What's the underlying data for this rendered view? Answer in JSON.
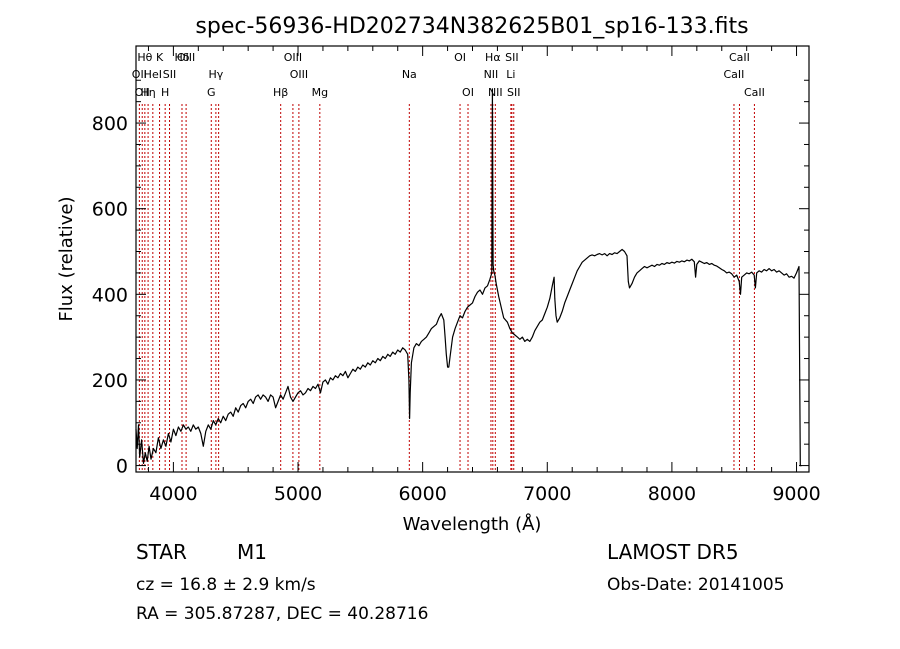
{
  "chart_data": {
    "type": "line",
    "title": "spec-56936-HD202734N382625B01_sp16-133.fits",
    "xlabel": "Wavelength (Å)",
    "ylabel": "Flux (relative)",
    "xlim": [
      3700,
      9100
    ],
    "ylim": [
      -15,
      980
    ],
    "xticks": [
      4000,
      5000,
      6000,
      7000,
      8000,
      9000
    ],
    "yticks": [
      0,
      200,
      400,
      600,
      800
    ],
    "grid": false,
    "series": [
      {
        "points": [
          [
            3700,
            85
          ],
          [
            3710,
            40
          ],
          [
            3720,
            95
          ],
          [
            3730,
            20
          ],
          [
            3745,
            60
          ],
          [
            3760,
            5
          ],
          [
            3775,
            30
          ],
          [
            3790,
            10
          ],
          [
            3805,
            45
          ],
          [
            3820,
            15
          ],
          [
            3840,
            40
          ],
          [
            3860,
            30
          ],
          [
            3880,
            65
          ],
          [
            3900,
            40
          ],
          [
            3920,
            60
          ],
          [
            3940,
            45
          ],
          [
            3960,
            75
          ],
          [
            3980,
            55
          ],
          [
            4000,
            85
          ],
          [
            4020,
            70
          ],
          [
            4040,
            90
          ],
          [
            4060,
            80
          ],
          [
            4080,
            95
          ],
          [
            4100,
            85
          ],
          [
            4120,
            90
          ],
          [
            4140,
            80
          ],
          [
            4160,
            95
          ],
          [
            4180,
            85
          ],
          [
            4200,
            90
          ],
          [
            4220,
            75
          ],
          [
            4240,
            45
          ],
          [
            4260,
            80
          ],
          [
            4280,
            95
          ],
          [
            4300,
            85
          ],
          [
            4320,
            105
          ],
          [
            4340,
            95
          ],
          [
            4360,
            110
          ],
          [
            4380,
            100
          ],
          [
            4400,
            115
          ],
          [
            4420,
            105
          ],
          [
            4440,
            120
          ],
          [
            4460,
            125
          ],
          [
            4480,
            115
          ],
          [
            4500,
            135
          ],
          [
            4520,
            125
          ],
          [
            4540,
            140
          ],
          [
            4560,
            145
          ],
          [
            4580,
            135
          ],
          [
            4600,
            150
          ],
          [
            4620,
            155
          ],
          [
            4640,
            145
          ],
          [
            4660,
            160
          ],
          [
            4680,
            165
          ],
          [
            4700,
            155
          ],
          [
            4720,
            165
          ],
          [
            4740,
            160
          ],
          [
            4760,
            150
          ],
          [
            4780,
            165
          ],
          [
            4800,
            160
          ],
          [
            4820,
            135
          ],
          [
            4840,
            150
          ],
          [
            4860,
            165
          ],
          [
            4880,
            155
          ],
          [
            4900,
            170
          ],
          [
            4920,
            185
          ],
          [
            4940,
            160
          ],
          [
            4960,
            150
          ],
          [
            4980,
            160
          ],
          [
            5000,
            170
          ],
          [
            5020,
            175
          ],
          [
            5040,
            165
          ],
          [
            5060,
            170
          ],
          [
            5080,
            180
          ],
          [
            5100,
            175
          ],
          [
            5120,
            185
          ],
          [
            5140,
            180
          ],
          [
            5160,
            190
          ],
          [
            5180,
            170
          ],
          [
            5200,
            195
          ],
          [
            5220,
            200
          ],
          [
            5240,
            190
          ],
          [
            5260,
            205
          ],
          [
            5280,
            200
          ],
          [
            5300,
            210
          ],
          [
            5320,
            205
          ],
          [
            5340,
            215
          ],
          [
            5360,
            210
          ],
          [
            5380,
            220
          ],
          [
            5400,
            205
          ],
          [
            5420,
            215
          ],
          [
            5440,
            225
          ],
          [
            5460,
            220
          ],
          [
            5480,
            230
          ],
          [
            5500,
            225
          ],
          [
            5520,
            235
          ],
          [
            5540,
            230
          ],
          [
            5560,
            240
          ],
          [
            5580,
            235
          ],
          [
            5600,
            245
          ],
          [
            5620,
            240
          ],
          [
            5640,
            250
          ],
          [
            5660,
            245
          ],
          [
            5680,
            255
          ],
          [
            5700,
            250
          ],
          [
            5720,
            260
          ],
          [
            5740,
            255
          ],
          [
            5760,
            265
          ],
          [
            5780,
            260
          ],
          [
            5800,
            270
          ],
          [
            5820,
            265
          ],
          [
            5840,
            275
          ],
          [
            5860,
            270
          ],
          [
            5880,
            260
          ],
          [
            5890,
            200
          ],
          [
            5895,
            110
          ],
          [
            5900,
            170
          ],
          [
            5910,
            240
          ],
          [
            5930,
            275
          ],
          [
            5950,
            285
          ],
          [
            5970,
            280
          ],
          [
            5990,
            290
          ],
          [
            6010,
            295
          ],
          [
            6030,
            300
          ],
          [
            6050,
            310
          ],
          [
            6070,
            320
          ],
          [
            6090,
            325
          ],
          [
            6110,
            330
          ],
          [
            6130,
            345
          ],
          [
            6150,
            355
          ],
          [
            6170,
            340
          ],
          [
            6180,
            300
          ],
          [
            6190,
            260
          ],
          [
            6200,
            230
          ],
          [
            6210,
            230
          ],
          [
            6220,
            255
          ],
          [
            6240,
            300
          ],
          [
            6260,
            320
          ],
          [
            6280,
            335
          ],
          [
            6300,
            350
          ],
          [
            6320,
            345
          ],
          [
            6340,
            360
          ],
          [
            6360,
            370
          ],
          [
            6380,
            375
          ],
          [
            6400,
            380
          ],
          [
            6420,
            395
          ],
          [
            6440,
            405
          ],
          [
            6460,
            410
          ],
          [
            6480,
            400
          ],
          [
            6500,
            415
          ],
          [
            6520,
            420
          ],
          [
            6540,
            435
          ],
          [
            6555,
            450
          ],
          [
            6560,
            880
          ],
          [
            6565,
            470
          ],
          [
            6570,
            455
          ],
          [
            6580,
            445
          ],
          [
            6590,
            425
          ],
          [
            6610,
            395
          ],
          [
            6630,
            370
          ],
          [
            6650,
            345
          ],
          [
            6680,
            335
          ],
          [
            6700,
            320
          ],
          [
            6720,
            310
          ],
          [
            6740,
            305
          ],
          [
            6760,
            300
          ],
          [
            6780,
            295
          ],
          [
            6800,
            300
          ],
          [
            6820,
            290
          ],
          [
            6840,
            295
          ],
          [
            6860,
            290
          ],
          [
            6880,
            300
          ],
          [
            6900,
            315
          ],
          [
            6920,
            325
          ],
          [
            6940,
            335
          ],
          [
            6960,
            340
          ],
          [
            6980,
            355
          ],
          [
            7000,
            370
          ],
          [
            7020,
            390
          ],
          [
            7040,
            420
          ],
          [
            7055,
            440
          ],
          [
            7060,
            390
          ],
          [
            7070,
            350
          ],
          [
            7080,
            335
          ],
          [
            7100,
            345
          ],
          [
            7120,
            360
          ],
          [
            7140,
            380
          ],
          [
            7160,
            395
          ],
          [
            7180,
            410
          ],
          [
            7200,
            425
          ],
          [
            7220,
            440
          ],
          [
            7240,
            455
          ],
          [
            7260,
            465
          ],
          [
            7280,
            475
          ],
          [
            7300,
            480
          ],
          [
            7320,
            485
          ],
          [
            7340,
            490
          ],
          [
            7360,
            492
          ],
          [
            7380,
            490
          ],
          [
            7400,
            493
          ],
          [
            7420,
            495
          ],
          [
            7440,
            492
          ],
          [
            7460,
            495
          ],
          [
            7480,
            490
          ],
          [
            7500,
            495
          ],
          [
            7520,
            493
          ],
          [
            7540,
            497
          ],
          [
            7560,
            495
          ],
          [
            7580,
            500
          ],
          [
            7600,
            505
          ],
          [
            7620,
            500
          ],
          [
            7640,
            490
          ],
          [
            7650,
            430
          ],
          [
            7660,
            415
          ],
          [
            7680,
            425
          ],
          [
            7700,
            440
          ],
          [
            7720,
            450
          ],
          [
            7740,
            455
          ],
          [
            7760,
            460
          ],
          [
            7780,
            465
          ],
          [
            7800,
            462
          ],
          [
            7820,
            465
          ],
          [
            7840,
            468
          ],
          [
            7860,
            465
          ],
          [
            7880,
            470
          ],
          [
            7900,
            468
          ],
          [
            7920,
            472
          ],
          [
            7940,
            470
          ],
          [
            7960,
            474
          ],
          [
            7980,
            472
          ],
          [
            8000,
            475
          ],
          [
            8020,
            473
          ],
          [
            8040,
            477
          ],
          [
            8060,
            475
          ],
          [
            8080,
            478
          ],
          [
            8100,
            476
          ],
          [
            8120,
            480
          ],
          [
            8140,
            478
          ],
          [
            8160,
            482
          ],
          [
            8180,
            476
          ],
          [
            8190,
            440
          ],
          [
            8200,
            470
          ],
          [
            8220,
            478
          ],
          [
            8240,
            475
          ],
          [
            8260,
            472
          ],
          [
            8280,
            474
          ],
          [
            8300,
            470
          ],
          [
            8320,
            472
          ],
          [
            8340,
            468
          ],
          [
            8360,
            466
          ],
          [
            8380,
            462
          ],
          [
            8400,
            458
          ],
          [
            8420,
            455
          ],
          [
            8440,
            450
          ],
          [
            8460,
            452
          ],
          [
            8480,
            448
          ],
          [
            8500,
            440
          ],
          [
            8520,
            445
          ],
          [
            8540,
            430
          ],
          [
            8550,
            400
          ],
          [
            8560,
            440
          ],
          [
            8580,
            445
          ],
          [
            8600,
            450
          ],
          [
            8620,
            448
          ],
          [
            8640,
            452
          ],
          [
            8660,
            445
          ],
          [
            8670,
            415
          ],
          [
            8680,
            450
          ],
          [
            8700,
            455
          ],
          [
            8720,
            452
          ],
          [
            8740,
            458
          ],
          [
            8760,
            455
          ],
          [
            8780,
            460
          ],
          [
            8800,
            455
          ],
          [
            8820,
            458
          ],
          [
            8840,
            452
          ],
          [
            8860,
            455
          ],
          [
            8880,
            450
          ],
          [
            8900,
            445
          ],
          [
            8920,
            448
          ],
          [
            8940,
            440
          ],
          [
            8960,
            442
          ],
          [
            8980,
            438
          ],
          [
            9000,
            450
          ],
          [
            9020,
            465
          ],
          [
            9030,
            0
          ],
          [
            9040,
            0
          ]
        ]
      }
    ],
    "line_marks": [
      {
        "x": 3727,
        "label": "OII",
        "row": 1
      },
      {
        "x": 3750,
        "label": "OII",
        "row": 2
      },
      {
        "x": 3771,
        "label": "Hθ",
        "row": 0
      },
      {
        "x": 3797,
        "label": "Hη",
        "row": 2
      },
      {
        "x": 3835,
        "label": "HeI",
        "row": 1
      },
      {
        "x": 3889,
        "label": "K",
        "row": 0
      },
      {
        "x": 3934,
        "label": "H",
        "row": 2
      },
      {
        "x": 3969,
        "label": "SII",
        "row": 1
      },
      {
        "x": 4069,
        "label": "Hδ",
        "row": 0
      },
      {
        "x": 4102,
        "label": "OIII",
        "row": 0
      },
      {
        "x": 4304,
        "label": "G",
        "row": 2
      },
      {
        "x": 4341,
        "label": "Hγ",
        "row": 1
      },
      {
        "x": 4363,
        "label": "",
        "row": 0
      },
      {
        "x": 4861,
        "label": "Hβ",
        "row": 2
      },
      {
        "x": 4959,
        "label": "OIII",
        "row": 0
      },
      {
        "x": 5007,
        "label": "OIII",
        "row": 1
      },
      {
        "x": 5175,
        "label": "Mg",
        "row": 2
      },
      {
        "x": 5893,
        "label": "Na",
        "row": 1
      },
      {
        "x": 6300,
        "label": "OI",
        "row": 0
      },
      {
        "x": 6364,
        "label": "OI",
        "row": 2
      },
      {
        "x": 6548,
        "label": "NII",
        "row": 1
      },
      {
        "x": 6563,
        "label": "Hα",
        "row": 0
      },
      {
        "x": 6583,
        "label": "NII",
        "row": 2
      },
      {
        "x": 6708,
        "label": "Li",
        "row": 1
      },
      {
        "x": 6716,
        "label": "SII",
        "row": 0
      },
      {
        "x": 6731,
        "label": "SII",
        "row": 2
      },
      {
        "x": 8498,
        "label": "CaII",
        "row": 1
      },
      {
        "x": 8542,
        "label": "CaII",
        "row": 0
      },
      {
        "x": 8662,
        "label": "CaII",
        "row": 2
      }
    ],
    "line_mark_color": "#c00000"
  },
  "info": {
    "object_class": "STAR",
    "subclass": "M1",
    "survey": "LAMOST DR5",
    "cz": "cz = 16.8 ± 2.9 km/s",
    "obs_date": "Obs-Date: 20141005",
    "coords": "RA = 305.87287, DEC =  40.28716"
  }
}
